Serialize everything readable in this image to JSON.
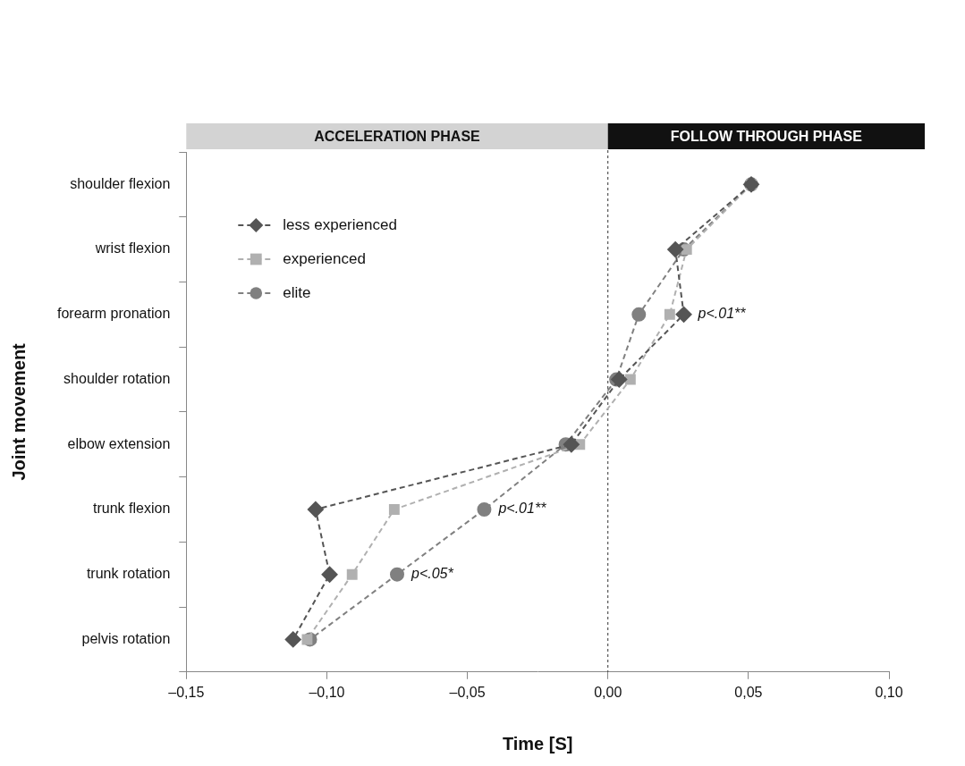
{
  "chart_data": {
    "type": "line",
    "x_label": "Time [S]",
    "y_label": "Joint movement",
    "categories": [
      "shoulder flexion",
      "wrist flexion",
      "forearm pronation",
      "shoulder rotation",
      "elbow extension",
      "trunk flexion",
      "trunk rotation",
      "pelvis rotation"
    ],
    "xlim": [
      -0.15,
      0.1
    ],
    "xticks": [
      {
        "value": -0.15,
        "label": "–0,15"
      },
      {
        "value": -0.1,
        "label": "–0,10"
      },
      {
        "value": -0.05,
        "label": "–0,05"
      },
      {
        "value": 0,
        "label": "0,00"
      },
      {
        "value": 0.05,
        "label": "0,05"
      },
      {
        "value": 0.1,
        "label": "0,10"
      }
    ],
    "grid": false,
    "legend": "upper left",
    "series": [
      {
        "name": "less experienced",
        "color": "#555555",
        "marker": "diamond",
        "line_style": "dashed",
        "values": [
          0.051,
          0.024,
          0.027,
          0.004,
          -0.013,
          -0.104,
          -0.099,
          -0.112
        ]
      },
      {
        "name": "experienced",
        "color": "#b0b0b0",
        "marker": "square",
        "line_style": "dashed",
        "values": [
          0.051,
          0.028,
          0.022,
          0.008,
          -0.01,
          -0.076,
          -0.091,
          -0.107
        ]
      },
      {
        "name": "elite",
        "color": "#808080",
        "marker": "circle",
        "line_style": "dashed",
        "values": [
          0.051,
          0.027,
          0.011,
          0.003,
          -0.015,
          -0.044,
          -0.075,
          -0.106
        ]
      }
    ],
    "annotations": [
      {
        "text": "p<.01**",
        "category": "forearm pronation"
      },
      {
        "text": "p<.01**",
        "category": "trunk flexion"
      },
      {
        "text": "p<.05*",
        "category": "trunk rotation"
      }
    ],
    "phases": [
      {
        "label": "ACCELERATION PHASE",
        "start": -0.15,
        "color": "#d3d3d3"
      },
      {
        "label": "FOLLOW THROUGH PHASE",
        "start": 0,
        "color": "#111111"
      }
    ]
  }
}
